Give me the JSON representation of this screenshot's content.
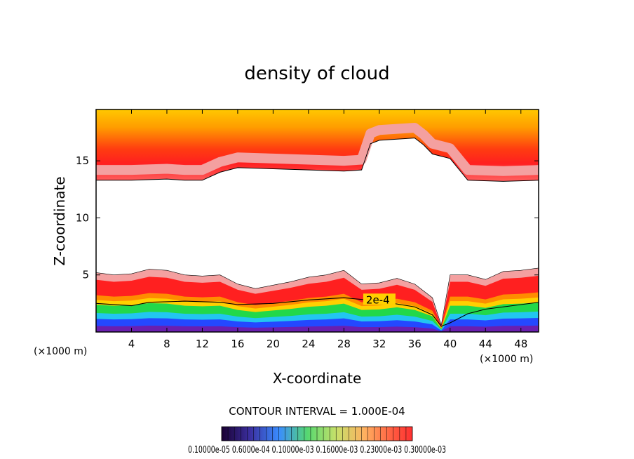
{
  "chart_data": {
    "type": "heatmap",
    "title": "density of cloud",
    "xlabel": "X-coordinate",
    "ylabel": "Z-coordinate",
    "x_unit_label": "(×1000 m)",
    "x_unit_label_right": "(×1000 m)",
    "xlim": [
      0,
      50
    ],
    "ylim": [
      0,
      19.5
    ],
    "x_ticks": [
      4,
      8,
      12,
      16,
      20,
      24,
      28,
      32,
      36,
      40,
      44,
      48
    ],
    "y_ticks": [
      5,
      10,
      15
    ],
    "contour_interval_text": "CONTOUR INTERVAL = 1.000E-04",
    "contour_label": "2e-4",
    "colorbar_labels_text": "0.10000e-05 0.6000e-04 0.10000e-03 0.16000e-03 0.23000e-03 0.30000e-03",
    "colorbar_range": [
      1e-06,
      0.0003
    ],
    "upper_layer_base_z": [
      [
        0,
        13.3
      ],
      [
        4,
        13.3
      ],
      [
        8,
        13.4
      ],
      [
        10,
        13.3
      ],
      [
        12,
        13.3
      ],
      [
        14,
        14.0
      ],
      [
        16,
        14.4
      ],
      [
        20,
        14.3
      ],
      [
        24,
        14.2
      ],
      [
        28,
        14.1
      ],
      [
        30,
        14.2
      ],
      [
        31,
        16.5
      ],
      [
        32,
        16.8
      ],
      [
        36,
        17.0
      ],
      [
        37,
        16.4
      ],
      [
        38,
        15.6
      ],
      [
        40,
        15.2
      ],
      [
        42,
        13.3
      ],
      [
        46,
        13.2
      ],
      [
        50,
        13.3
      ]
    ],
    "lower_layer_top_z": [
      [
        0,
        5.2
      ],
      [
        2,
        5.0
      ],
      [
        4,
        5.1
      ],
      [
        6,
        5.5
      ],
      [
        8,
        5.4
      ],
      [
        10,
        5.0
      ],
      [
        12,
        4.9
      ],
      [
        14,
        5.0
      ],
      [
        16,
        4.2
      ],
      [
        18,
        3.8
      ],
      [
        20,
        4.1
      ],
      [
        22,
        4.4
      ],
      [
        24,
        4.8
      ],
      [
        26,
        5.0
      ],
      [
        28,
        5.4
      ],
      [
        30,
        4.2
      ],
      [
        32,
        4.3
      ],
      [
        34,
        4.7
      ],
      [
        36,
        4.2
      ],
      [
        38,
        3.0
      ],
      [
        39,
        0.6
      ],
      [
        40,
        5.0
      ],
      [
        42,
        5.0
      ],
      [
        44,
        4.6
      ],
      [
        46,
        5.3
      ],
      [
        48,
        5.4
      ],
      [
        50,
        5.6
      ]
    ],
    "contour_2e4_z": [
      [
        0,
        2.5
      ],
      [
        4,
        2.3
      ],
      [
        6,
        2.6
      ],
      [
        10,
        2.7
      ],
      [
        14,
        2.6
      ],
      [
        16,
        2.4
      ],
      [
        20,
        2.5
      ],
      [
        24,
        2.8
      ],
      [
        28,
        3.0
      ],
      [
        32,
        2.7
      ],
      [
        36,
        2.2
      ],
      [
        38,
        1.5
      ],
      [
        39,
        0.5
      ],
      [
        40,
        0.8
      ],
      [
        42,
        1.6
      ],
      [
        44,
        2.0
      ],
      [
        46,
        2.2
      ],
      [
        48,
        2.4
      ],
      [
        50,
        2.6
      ]
    ],
    "colors": {
      "outer": "#f4a0a0",
      "red": "#ff2020",
      "orange": "#ff8c00",
      "yellow": "#ffd000",
      "green": "#22d84a",
      "cyan": "#22c6f0",
      "blue": "#2448ff",
      "purple": "#6a1fb0"
    }
  }
}
